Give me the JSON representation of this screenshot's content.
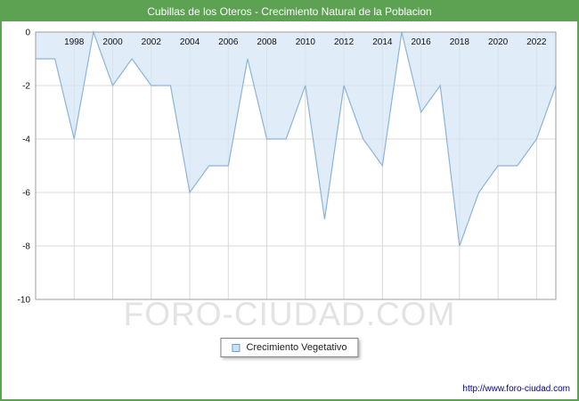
{
  "title": "Cubillas de los Oteros - Crecimiento Natural de la Poblacion",
  "watermark": "FORO-CIUDAD.COM",
  "legend": {
    "label": "Crecimiento Vegetativo"
  },
  "footer": {
    "url": "http://www.foro-ciudad.com"
  },
  "colors": {
    "header_bg": "#5da153",
    "page_border": "#5da153",
    "line": "#8cb4da",
    "fill": "#d6e6f6",
    "grid": "#d8d8d8",
    "frame": "#9e9e9e",
    "tick_text": "#111111",
    "watermark": "#e3e3e3",
    "url_text": "#00008b"
  },
  "chart_data": {
    "type": "area",
    "title": "Cubillas de los Oteros - Crecimiento Natural de la Poblacion",
    "x": [
      1996,
      1997,
      1998,
      1999,
      2000,
      2001,
      2002,
      2003,
      2004,
      2005,
      2006,
      2007,
      2008,
      2009,
      2010,
      2011,
      2012,
      2013,
      2014,
      2015,
      2016,
      2017,
      2018,
      2019,
      2020,
      2021,
      2022,
      2023
    ],
    "series": [
      {
        "name": "Crecimiento Vegetativo",
        "values": [
          -1,
          -1,
          -4,
          0,
          -2,
          -1,
          -2,
          -2,
          -6,
          -5,
          -5,
          -1,
          -4,
          -4,
          -2,
          -7,
          -2,
          -4,
          -5,
          0,
          -3,
          -2,
          -8,
          -6,
          -5,
          -5,
          -4,
          -2
        ]
      }
    ],
    "ylim": [
      -10,
      0
    ],
    "yticks": [
      0,
      -2,
      -4,
      -6,
      -8,
      -10
    ],
    "xticks": [
      1998,
      2000,
      2002,
      2004,
      2006,
      2008,
      2010,
      2012,
      2014,
      2016,
      2018,
      2020,
      2022
    ],
    "xlabel": "",
    "ylabel": "",
    "grid": true,
    "legend_position": "bottom"
  }
}
